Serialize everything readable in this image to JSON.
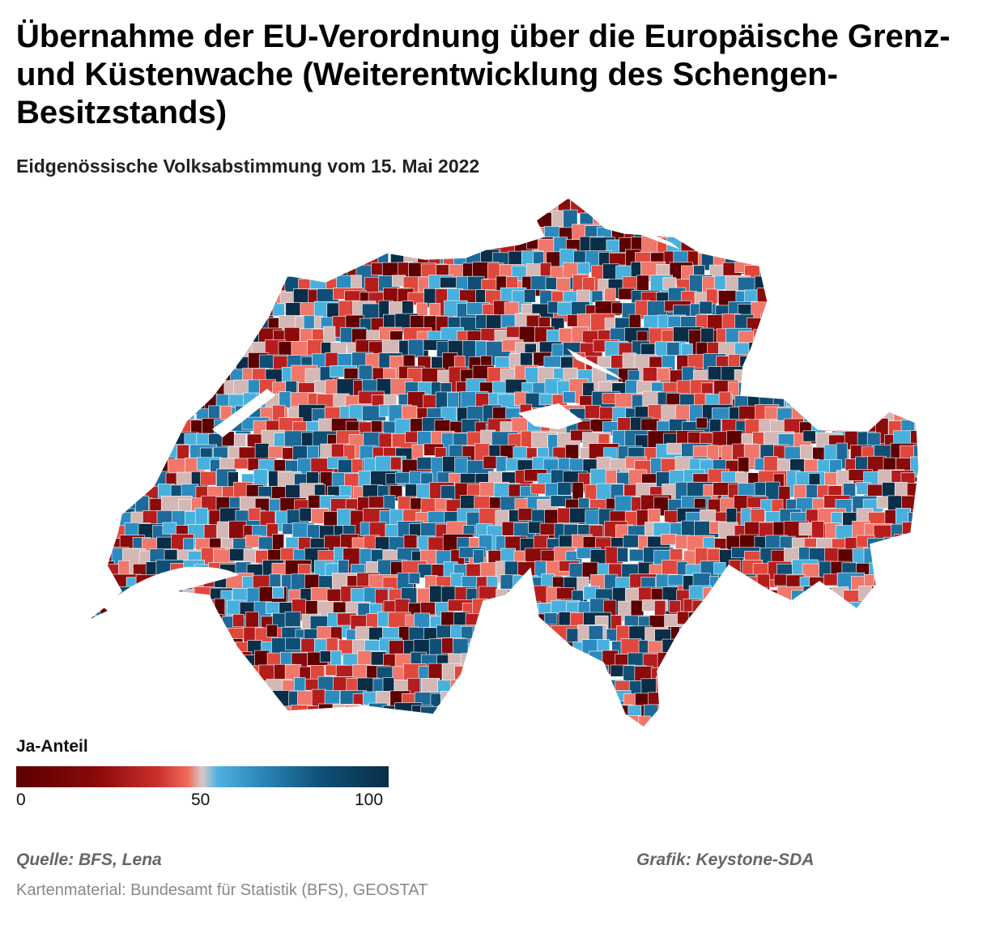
{
  "header": {
    "title": "Übernahme der EU-Verordnung über die Europäische Grenz- und Küstenwache (Weiterentwicklung des Schengen-Besitzstands)",
    "subtitle": "Eidgenössische Volksabstimmung vom 15. Mai 2022"
  },
  "map": {
    "palette": [
      "#5c0000",
      "#8b0a0a",
      "#b51d1d",
      "#e0483d",
      "#f0776a",
      "#d4b8b6",
      "#48b0dd",
      "#2c8cc0",
      "#1d6a99",
      "#0f4f75",
      "#0a2e47"
    ],
    "border_color": "#ffffff"
  },
  "legend": {
    "title": "Ja-Anteil",
    "ticks": [
      "0",
      "50",
      "100"
    ]
  },
  "footer": {
    "source": "Quelle: BFS, Lena",
    "credit": "Grafik: Keystone-SDA",
    "map_source": "Kartenmaterial: Bundesamt für Statistik (BFS), GEOSTAT"
  }
}
